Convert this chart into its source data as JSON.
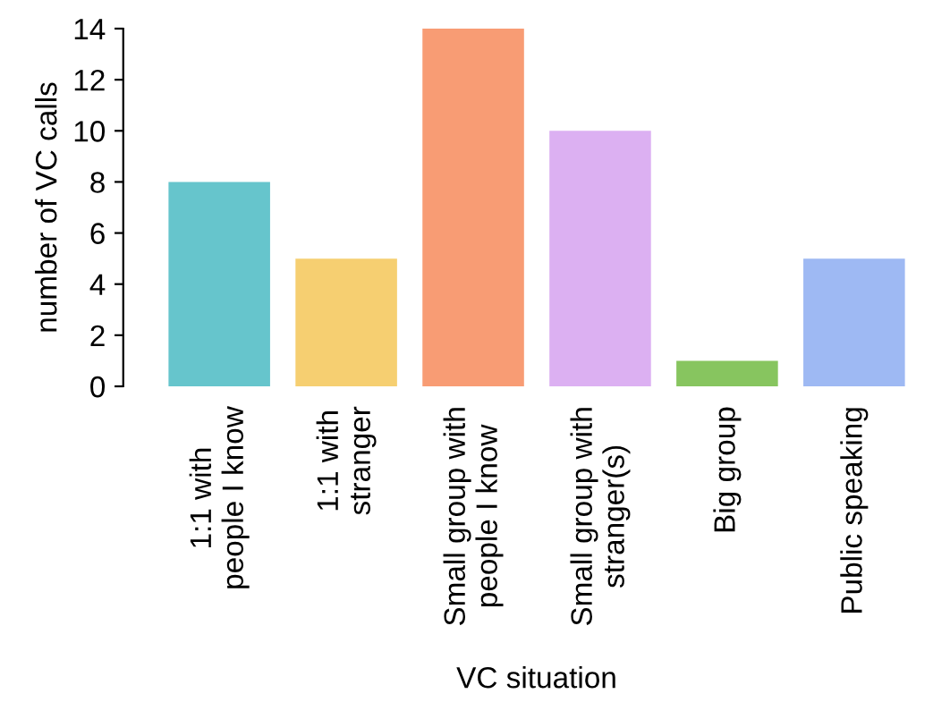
{
  "chart_data": {
    "type": "bar",
    "xlabel": "VC situation",
    "ylabel": "number of VC calls",
    "categories": [
      "1:1 with\npeople I know",
      "1:1 with\nstranger",
      "Small group with\npeople I know",
      "Small group with\nstranger(s)",
      "Big group",
      "Public speaking"
    ],
    "values": [
      8,
      5,
      14,
      10,
      1,
      5
    ],
    "colors": [
      "#66c5cc",
      "#f6cf71",
      "#f89c74",
      "#dcb0f2",
      "#87c55f",
      "#9eb9f3"
    ],
    "ylim": [
      0,
      14
    ],
    "yticks": [
      0,
      2,
      4,
      6,
      8,
      10,
      12,
      14
    ],
    "grid": false
  }
}
